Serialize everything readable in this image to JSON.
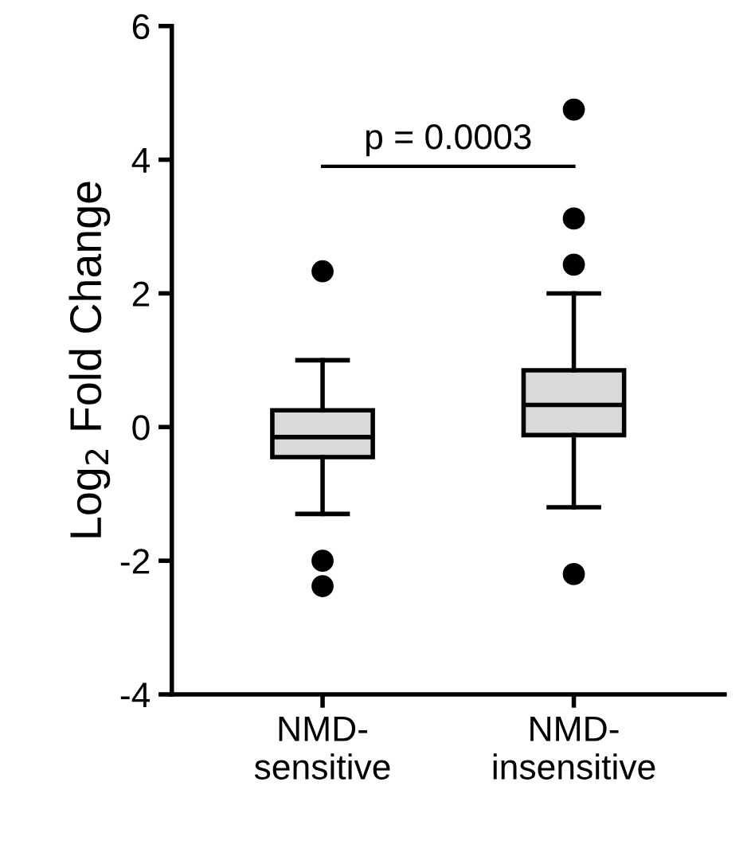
{
  "chart_data": {
    "type": "box",
    "ylabel": "Log$_{2}$ Fold Change",
    "categories": [
      "NMD-\nsensitive",
      "NMD-\ninsensitive"
    ],
    "boxes": [
      {
        "low": -1.3,
        "q1": -0.45,
        "median": -0.15,
        "q3": 0.25,
        "high": 1.0,
        "outliers": [
          2.33,
          -2.0,
          -2.38
        ]
      },
      {
        "low": -1.2,
        "q1": -0.12,
        "median": 0.33,
        "q3": 0.85,
        "high": 2.0,
        "outliers": [
          4.75,
          3.12,
          2.43,
          -2.2
        ]
      }
    ],
    "color": "#d9d9d9",
    "ylim": [
      -4,
      6
    ],
    "yticks": [
      -4,
      -2,
      0,
      2,
      4,
      6
    ],
    "annotations": [
      "p = 0.0003"
    ],
    "grid": false
  }
}
